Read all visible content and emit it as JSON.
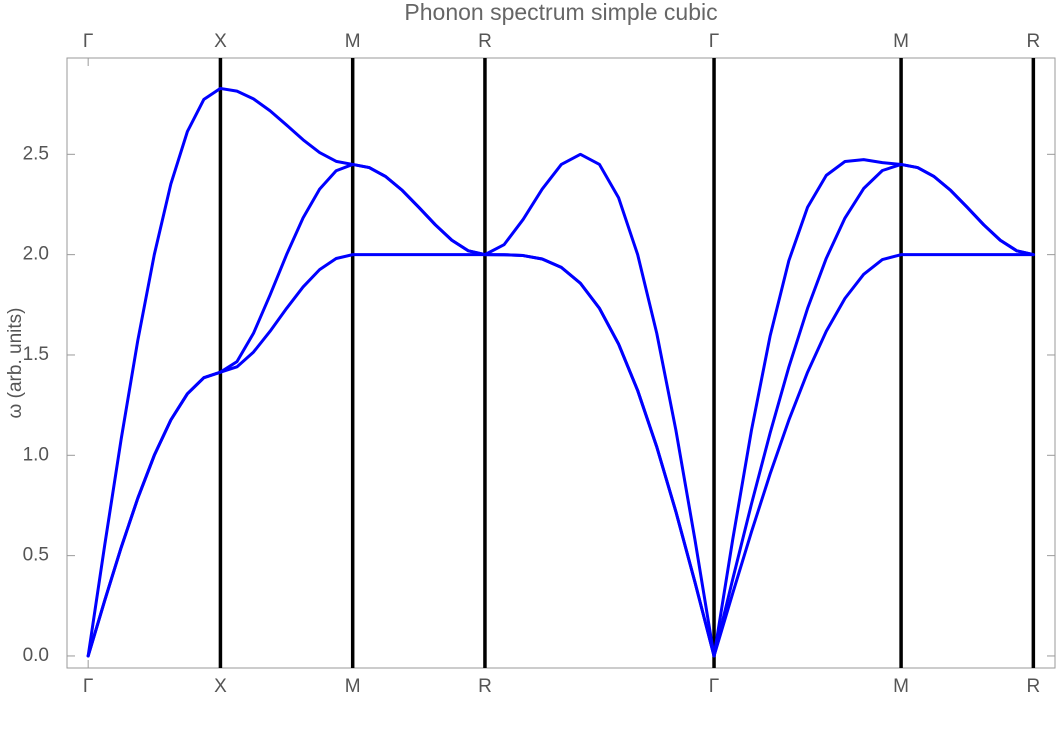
{
  "chart_data": {
    "type": "line",
    "title": "Phonon spectrum simple cubic",
    "y_label": "ω (arb. units)",
    "color": "#0000ff",
    "x": [
      0,
      0.125,
      0.25,
      0.375,
      0.5,
      0.625,
      0.75,
      0.875,
      1,
      1.125,
      1.25,
      1.375,
      1.5,
      1.625,
      1.75,
      1.875,
      2,
      2.125,
      2.25,
      2.375,
      2.5,
      2.625,
      2.75,
      2.875,
      3,
      3.1443,
      3.2887,
      3.433,
      3.5774,
      3.7217,
      3.866,
      4.0104,
      4.1547,
      4.299,
      4.4434,
      4.5877,
      4.7321,
      4.8735,
      5.0149,
      5.1563,
      5.2978,
      5.4392,
      5.5806,
      5.722,
      5.8634,
      6.0049,
      6.1463,
      6.2713,
      6.3963,
      6.5213,
      6.6463,
      6.7713,
      6.8963,
      7.0213,
      7.1463
    ],
    "series": [
      {
        "color": "#0000ff",
        "values": [
          0,
          0.2759,
          0.5412,
          0.7857,
          1.0,
          1.1759,
          1.3066,
          1.387,
          1.4142,
          1.4409,
          1.5142,
          1.6178,
          1.7321,
          1.8392,
          1.9254,
          1.9809,
          2.0,
          2.0,
          2.0,
          2.0,
          2.0,
          2.0,
          2.0,
          2.0,
          2.0,
          1.9997,
          1.9955,
          1.9784,
          1.9365,
          1.8576,
          1.7321,
          1.5542,
          1.3229,
          1.042,
          0.7198,
          0.3678,
          0,
          0.3127,
          0.6181,
          0.908,
          1.1756,
          1.4142,
          1.618,
          1.782,
          1.9021,
          1.9754,
          2.0,
          2.0,
          2.0,
          2.0,
          2.0,
          2.0,
          2.0,
          2.0,
          2.0
        ]
      },
      {
        "color": "#0000ff",
        "values": [
          0,
          0.2759,
          0.5412,
          0.7857,
          1.0,
          1.1759,
          1.3066,
          1.387,
          1.4142,
          1.467,
          1.608,
          1.7985,
          2.0,
          2.183,
          2.3268,
          2.4182,
          2.4495,
          2.4339,
          2.389,
          2.3201,
          2.2361,
          2.1488,
          2.0719,
          2.019,
          2.0,
          1.9997,
          1.9955,
          1.9784,
          1.9365,
          1.8576,
          1.7321,
          1.5542,
          1.3229,
          1.042,
          0.7198,
          0.3678,
          0,
          0.383,
          0.757,
          1.112,
          1.4398,
          1.7321,
          1.9817,
          2.1825,
          2.3296,
          2.4194,
          2.4495,
          2.4339,
          2.389,
          2.3201,
          2.2361,
          2.1488,
          2.0719,
          2.019,
          2.0
        ]
      },
      {
        "color": "#0000ff",
        "values": [
          0,
          0.5518,
          1.0824,
          1.5714,
          2.0,
          2.3518,
          2.6131,
          2.7741,
          2.8284,
          2.815,
          2.7762,
          2.7171,
          2.6458,
          2.5724,
          2.5086,
          2.465,
          2.4495,
          2.4339,
          2.389,
          2.3201,
          2.2361,
          2.1488,
          2.0719,
          2.019,
          2.0,
          2.0494,
          2.1754,
          2.3269,
          2.4495,
          2.4999,
          2.4495,
          2.2835,
          2.0,
          1.608,
          1.1262,
          0.5799,
          0,
          0.5809,
          1.1243,
          1.5955,
          1.9703,
          2.2361,
          2.395,
          2.4642,
          2.4735,
          2.4585,
          2.4495,
          2.4339,
          2.389,
          2.3201,
          2.2361,
          2.1488,
          2.0719,
          2.019,
          2.0
        ]
      }
    ],
    "xlim": [
      -0.16,
      7.31
    ],
    "xticks": [
      {
        "value": 0,
        "label": "Γ"
      },
      {
        "value": 1,
        "label": "X"
      },
      {
        "value": 2,
        "label": "M"
      },
      {
        "value": 3,
        "label": "R"
      },
      {
        "value": 4.7321,
        "label": "Γ"
      },
      {
        "value": 6.1463,
        "label": "M"
      },
      {
        "value": 7.1463,
        "label": "R"
      }
    ],
    "vlines": [
      1,
      2,
      3,
      4.7321,
      6.1463,
      7.1463
    ],
    "ylim": [
      -0.06,
      2.98
    ],
    "yticks": [
      {
        "value": 0,
        "label": "0.0"
      },
      0.5,
      {
        "value": 1,
        "label": "1.0"
      },
      1.5,
      {
        "value": 2,
        "label": "2.0"
      },
      2.5
    ]
  }
}
